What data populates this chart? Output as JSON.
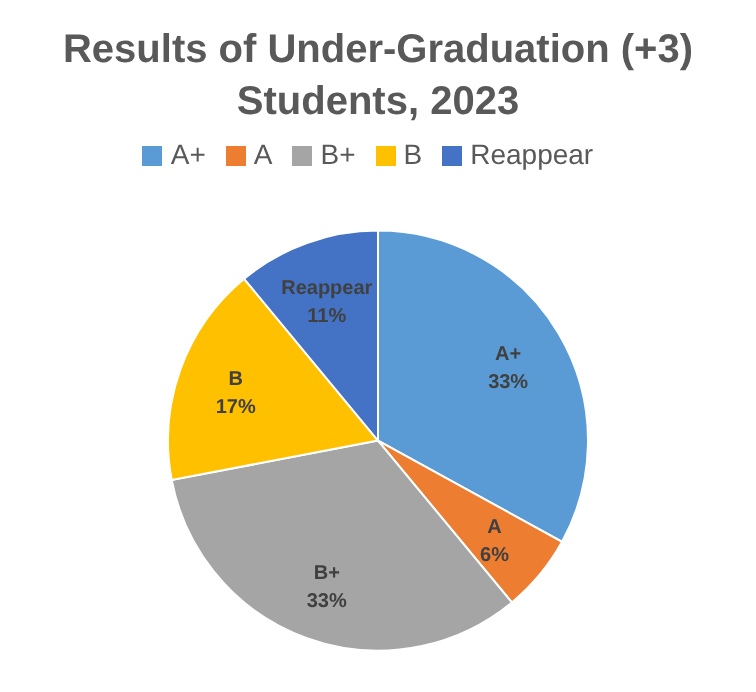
{
  "chart_data": {
    "type": "pie",
    "title": "Results of Under-Graduation (+3) Students, 2023",
    "categories": [
      "A+",
      "A",
      "B+",
      "B",
      "Reappear"
    ],
    "values": [
      33,
      6,
      33,
      17,
      11
    ],
    "value_labels": [
      "33%",
      "6%",
      "33%",
      "17%",
      "11%"
    ],
    "colors": [
      "#5b9bd5",
      "#ed7d31",
      "#a5a5a5",
      "#ffc000",
      "#4472c4"
    ],
    "legend": "top"
  }
}
